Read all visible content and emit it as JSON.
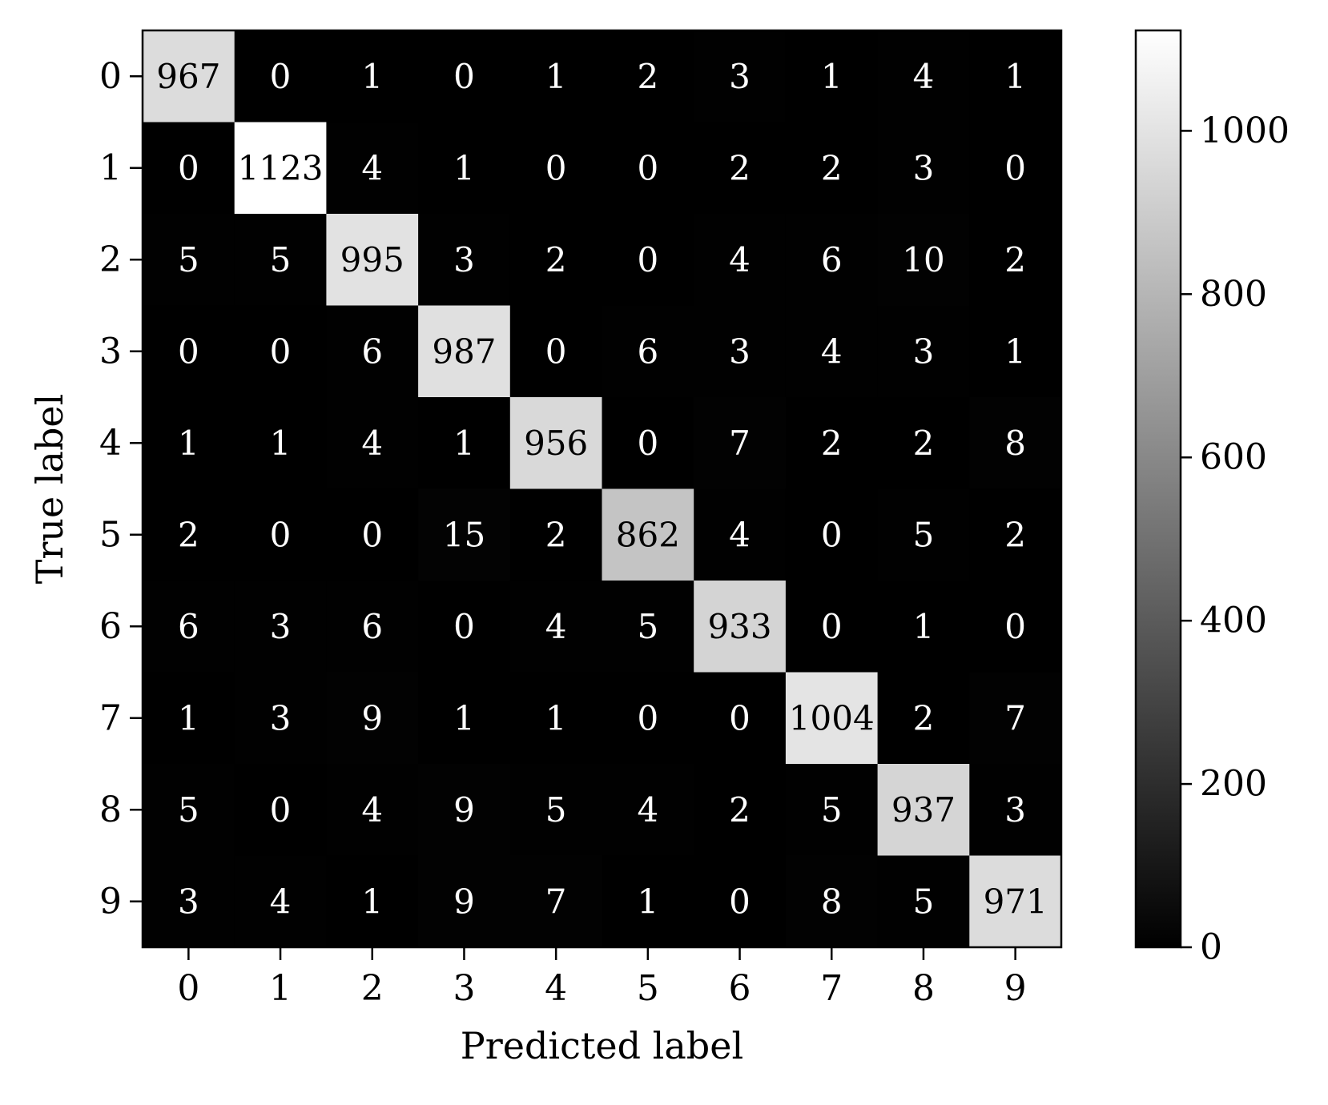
{
  "chart_data": {
    "type": "heatmap",
    "title": "",
    "xlabel": "Predicted label",
    "ylabel": "True label",
    "x_ticks": [
      "0",
      "1",
      "2",
      "3",
      "4",
      "5",
      "6",
      "7",
      "8",
      "9"
    ],
    "y_ticks": [
      "0",
      "1",
      "2",
      "3",
      "4",
      "5",
      "6",
      "7",
      "8",
      "9"
    ],
    "matrix": [
      [
        967,
        0,
        1,
        0,
        1,
        2,
        3,
        1,
        4,
        1
      ],
      [
        0,
        1123,
        4,
        1,
        0,
        0,
        2,
        2,
        3,
        0
      ],
      [
        5,
        5,
        995,
        3,
        2,
        0,
        4,
        6,
        10,
        2
      ],
      [
        0,
        0,
        6,
        987,
        0,
        6,
        3,
        4,
        3,
        1
      ],
      [
        1,
        1,
        4,
        1,
        956,
        0,
        7,
        2,
        2,
        8
      ],
      [
        2,
        0,
        0,
        15,
        2,
        862,
        4,
        0,
        5,
        2
      ],
      [
        6,
        3,
        6,
        0,
        4,
        5,
        933,
        0,
        1,
        0
      ],
      [
        1,
        3,
        9,
        1,
        1,
        0,
        0,
        1004,
        2,
        7
      ],
      [
        5,
        0,
        4,
        9,
        5,
        4,
        2,
        5,
        937,
        3
      ],
      [
        3,
        4,
        1,
        9,
        7,
        1,
        0,
        8,
        5,
        971
      ]
    ],
    "colormap": "gray",
    "vmin": 0,
    "vmax": 1123,
    "colorbar": {
      "ticks": [
        0,
        200,
        400,
        600,
        800,
        1000
      ],
      "tick_labels": [
        "0",
        "200",
        "400",
        "600",
        "800",
        "1000"
      ]
    },
    "text_color_light": "#ffffff",
    "text_color_dark": "#000000"
  }
}
